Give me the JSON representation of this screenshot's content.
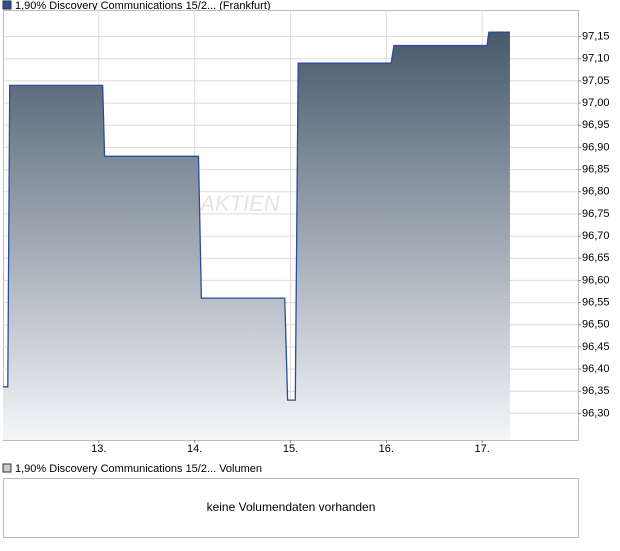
{
  "chart_data": {
    "type": "area",
    "title": "1,90% Discovery Communications 15/2... (Frankfurt)",
    "watermark": "AKTIEN",
    "x": [
      12.0,
      12.05,
      12.07,
      13.04,
      13.06,
      14.04,
      14.07,
      14.94,
      14.97,
      15.05,
      15.08,
      16.05,
      16.08,
      17.05,
      17.07,
      17.29
    ],
    "series": [
      {
        "name": "1,90% Discovery Communications 15/2... (Frankfurt)",
        "color": "#2b4c9b",
        "values": [
          96.36,
          96.36,
          97.04,
          97.04,
          96.88,
          96.88,
          96.56,
          96.56,
          96.33,
          96.33,
          97.09,
          97.09,
          97.13,
          97.13,
          97.16,
          97.16
        ]
      }
    ],
    "xlim": [
      12,
      18
    ],
    "xticks": [
      {
        "value": 13,
        "label": "13."
      },
      {
        "value": 14,
        "label": "14."
      },
      {
        "value": 15,
        "label": "15."
      },
      {
        "value": 16,
        "label": "16."
      },
      {
        "value": 17,
        "label": "17."
      }
    ],
    "ylim": [
      96.24,
      97.21
    ],
    "yticks": [
      {
        "value": 96.3,
        "label": "96,30"
      },
      {
        "value": 96.35,
        "label": "96,35"
      },
      {
        "value": 96.4,
        "label": "96,40"
      },
      {
        "value": 96.45,
        "label": "96,45"
      },
      {
        "value": 96.5,
        "label": "96,50"
      },
      {
        "value": 96.55,
        "label": "96,55"
      },
      {
        "value": 96.6,
        "label": "96,60"
      },
      {
        "value": 96.65,
        "label": "96,65"
      },
      {
        "value": 96.7,
        "label": "96,70"
      },
      {
        "value": 96.75,
        "label": "96,75"
      },
      {
        "value": 96.8,
        "label": "96,80"
      },
      {
        "value": 96.85,
        "label": "96,85"
      },
      {
        "value": 96.9,
        "label": "96,90"
      },
      {
        "value": 96.95,
        "label": "96,95"
      },
      {
        "value": 97.0,
        "label": "97,00"
      },
      {
        "value": 97.05,
        "label": "97,05"
      },
      {
        "value": 97.1,
        "label": "97,10"
      },
      {
        "value": 97.15,
        "label": "97,15"
      }
    ],
    "grid": true,
    "volume_legend": "1,90% Discovery Communications 15/2... Volumen",
    "volume_message": "keine Volumendaten vorhanden"
  }
}
